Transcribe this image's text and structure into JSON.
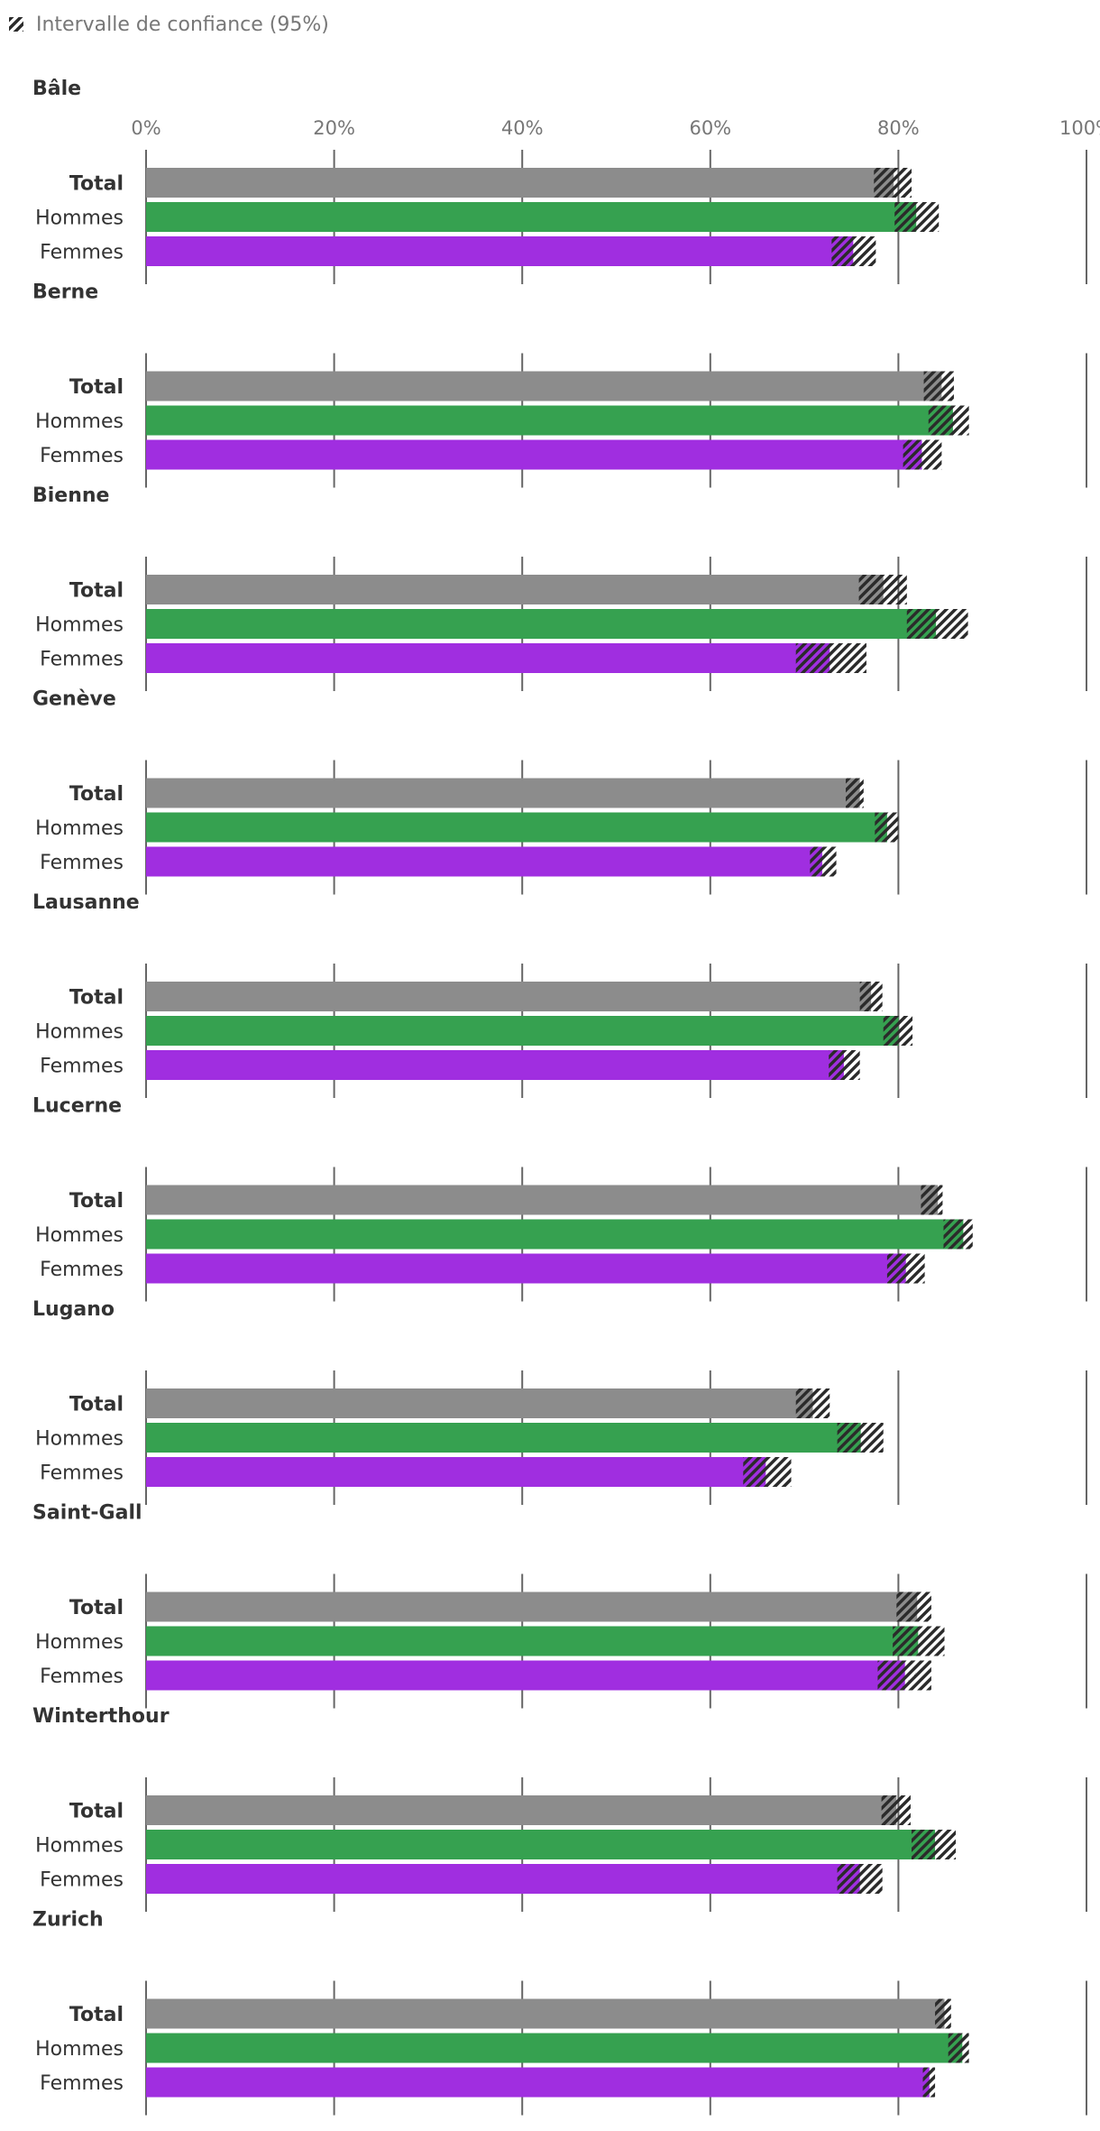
{
  "chart_data": {
    "type": "bar",
    "orientation": "horizontal",
    "legend": {
      "label": "Intervalle de confiance (95%)",
      "position": "top-left"
    },
    "x_ticks": [
      "0%",
      "20%",
      "40%",
      "60%",
      "80%",
      "100%"
    ],
    "xlim": [
      0,
      100
    ],
    "grid": true,
    "row_labels": [
      "Total",
      "Hommes",
      "Femmes"
    ],
    "colors": {
      "Total": "#8c8c8c",
      "Hommes": "#36a150",
      "Femmes": "#a02ee0",
      "text": "#333333",
      "muted": "#777777",
      "axis": "#666666"
    },
    "panels": [
      {
        "title": "Bâle",
        "rows": [
          {
            "label": "Total",
            "value": 79.5,
            "ci": [
              77.4,
              81.4
            ]
          },
          {
            "label": "Hommes",
            "value": 81.9,
            "ci": [
              79.6,
              84.3
            ]
          },
          {
            "label": "Femmes",
            "value": 75.2,
            "ci": [
              72.9,
              77.6
            ]
          }
        ]
      },
      {
        "title": "Berne",
        "rows": [
          {
            "label": "Total",
            "value": 84.6,
            "ci": [
              82.7,
              85.9
            ]
          },
          {
            "label": "Hommes",
            "value": 85.8,
            "ci": [
              83.2,
              87.5
            ]
          },
          {
            "label": "Femmes",
            "value": 82.5,
            "ci": [
              80.5,
              84.6
            ]
          }
        ]
      },
      {
        "title": "Bienne",
        "rows": [
          {
            "label": "Total",
            "value": 78.4,
            "ci": [
              75.8,
              80.9
            ]
          },
          {
            "label": "Hommes",
            "value": 84.0,
            "ci": [
              80.9,
              87.4
            ]
          },
          {
            "label": "Femmes",
            "value": 72.7,
            "ci": [
              69.1,
              76.6
            ]
          }
        ]
      },
      {
        "title": "Genève",
        "rows": [
          {
            "label": "Total",
            "value": 75.9,
            "ci": [
              74.4,
              76.3
            ]
          },
          {
            "label": "Hommes",
            "value": 78.8,
            "ci": [
              77.5,
              80.0
            ]
          },
          {
            "label": "Femmes",
            "value": 71.9,
            "ci": [
              70.6,
              73.4
            ]
          }
        ]
      },
      {
        "title": "Lausanne",
        "rows": [
          {
            "label": "Total",
            "value": 77.1,
            "ci": [
              75.9,
              78.3
            ]
          },
          {
            "label": "Hommes",
            "value": 80.0,
            "ci": [
              78.4,
              81.5
            ]
          },
          {
            "label": "Femmes",
            "value": 74.2,
            "ci": [
              72.6,
              75.9
            ]
          }
        ]
      },
      {
        "title": "Lucerne",
        "rows": [
          {
            "label": "Total",
            "value": 84.2,
            "ci": [
              82.4,
              84.7
            ]
          },
          {
            "label": "Hommes",
            "value": 86.9,
            "ci": [
              84.8,
              87.9
            ]
          },
          {
            "label": "Femmes",
            "value": 80.8,
            "ci": [
              78.8,
              82.8
            ]
          }
        ]
      },
      {
        "title": "Lugano",
        "rows": [
          {
            "label": "Total",
            "value": 70.9,
            "ci": [
              69.1,
              72.7
            ]
          },
          {
            "label": "Hommes",
            "value": 76.0,
            "ci": [
              73.5,
              78.4
            ]
          },
          {
            "label": "Femmes",
            "value": 65.9,
            "ci": [
              63.5,
              68.6
            ]
          }
        ]
      },
      {
        "title": "Saint-Gall",
        "rows": [
          {
            "label": "Total",
            "value": 82.0,
            "ci": [
              79.8,
              83.5
            ]
          },
          {
            "label": "Hommes",
            "value": 82.1,
            "ci": [
              79.4,
              84.9
            ]
          },
          {
            "label": "Femmes",
            "value": 80.7,
            "ci": [
              77.8,
              83.5
            ]
          }
        ]
      },
      {
        "title": "Winterthour",
        "rows": [
          {
            "label": "Total",
            "value": 79.8,
            "ci": [
              78.2,
              81.3
            ]
          },
          {
            "label": "Hommes",
            "value": 83.9,
            "ci": [
              81.4,
              86.1
            ]
          },
          {
            "label": "Femmes",
            "value": 75.9,
            "ci": [
              73.5,
              78.3
            ]
          }
        ]
      },
      {
        "title": "Zurich",
        "rows": [
          {
            "label": "Total",
            "value": 84.9,
            "ci": [
              83.9,
              85.6
            ]
          },
          {
            "label": "Hommes",
            "value": 86.8,
            "ci": [
              85.3,
              87.5
            ]
          },
          {
            "label": "Femmes",
            "value": 83.3,
            "ci": [
              82.6,
              83.9
            ]
          }
        ]
      }
    ]
  }
}
